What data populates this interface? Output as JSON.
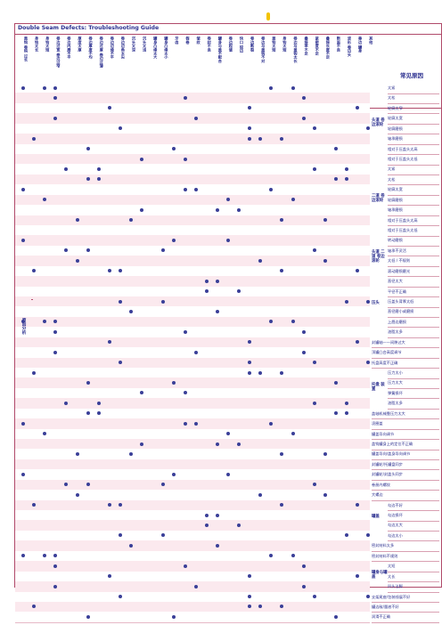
{
  "title": "Double Seam Defects: Troubleshooting Guide",
  "side_label": "原因分析",
  "cause_header": "常见原因",
  "columns": [
    "盖钩 卷钩 过长",
    "身钩太长",
    "身钩太短",
    "卷边过宽 卷边过窄",
    "卷边内唇不平",
    "厚度太厚",
    "卷边厚度不均",
    "卷边过厚 卷边过薄",
    "卷边边缘不平",
    "卷边边角太尖",
    "沉头太深",
    "沉头太浅",
    "罐身凸缘太大",
    "罐身凸缘太小",
    "牙齿",
    "假卷",
    "皱纹",
    "卷封不良",
    "罐身与盖不配合",
    "卷边起皱",
    "快口 锐边",
    "卷边断裂",
    "卷边与盖钩不对",
    "盖钩太短",
    "身钩太短",
    "卷边与盖钩太长",
    "叠接率不足",
    "紧密度不足",
    "叠接长度不足",
    "断面不良",
    "波形 卷边头",
    "垂边 罐身",
    "其他"
  ],
  "groups": [
    {
      "label": "头道 卷边滚轮"
    },
    {
      "label": "二道 卷边滚轮"
    },
    {
      "label": "头道 二道 卷边 滚轮"
    },
    {
      "label": "压头"
    },
    {
      "label": "托盘 装置"
    },
    {
      "label": "罐盖"
    },
    {
      "label": "罐身与罐盖"
    }
  ],
  "rows": [
    {
      "label": "太紧",
      "sub": true
    },
    {
      "label": "太松",
      "sub": true
    },
    {
      "label": "轮廓太窄",
      "sub": true
    },
    {
      "label": "轮廓太宽",
      "sub": true
    },
    {
      "label": "轮廓磨损",
      "sub": true
    },
    {
      "label": "轴承磨损",
      "sub": true
    },
    {
      "label": "相对于压盖头太高",
      "sub": true
    },
    {
      "label": "相对于压盖头太低",
      "sub": true
    },
    {
      "label": "太紧",
      "sub": true
    },
    {
      "label": "太松",
      "sub": true
    },
    {
      "label": "轮廓太宽",
      "sub": true
    },
    {
      "label": "轮廓磨损",
      "sub": true
    },
    {
      "label": "轴承磨损",
      "sub": true
    },
    {
      "label": "相对于压盖头太高",
      "sub": true
    },
    {
      "label": "相对于压盖头太低",
      "sub": true
    },
    {
      "label": "转动磨损",
      "sub": true
    },
    {
      "label": "轴承不灵活",
      "sub": true
    },
    {
      "label": "太低 / 不规则",
      "sub": true
    },
    {
      "label": "滚动磨损磨光",
      "sub": true
    },
    {
      "label": "直径太大",
      "sub": true
    },
    {
      "label": "平径不正确",
      "sub": true
    },
    {
      "label": "压盖头背厚太低",
      "sub": true
    },
    {
      "label": "直径磨小或磨损",
      "sub": true
    },
    {
      "label": "上唇边磨损",
      "sub": true
    },
    {
      "label": "油脂太多",
      "sub": true
    },
    {
      "label": "封罐轴——间隙过大",
      "sub": false
    },
    {
      "label": "顶罐凸台高度调节",
      "sub": false
    },
    {
      "label": "托盘高度不正确",
      "sub": false
    },
    {
      "label": "压力太小",
      "sub": true
    },
    {
      "label": "压力太大",
      "sub": true
    },
    {
      "label": "弹簧损坏",
      "sub": true
    },
    {
      "label": "油脂太多",
      "sub": true
    },
    {
      "label": "盖轴机械靠压力太大",
      "sub": false
    },
    {
      "label": "凌圈盖",
      "sub": false
    },
    {
      "label": "罐盖导向调节",
      "sub": false
    },
    {
      "label": "盖钩罐身上的定位不正确",
      "sub": false
    },
    {
      "label": "罐盖导向/盖身导向调节",
      "sub": false
    },
    {
      "label": "封罐轮/托罐盘同步",
      "sub": false
    },
    {
      "label": "封罐轮/封盖头同步",
      "sub": false
    },
    {
      "label": "卷册内螺纹",
      "sub": false
    },
    {
      "label": "大螺边",
      "sub": false
    },
    {
      "label": "勾边不好",
      "sub": true
    },
    {
      "label": "勾边损坏",
      "sub": true
    },
    {
      "label": "勾边太大",
      "sub": true
    },
    {
      "label": "勾边太小",
      "sub": true
    },
    {
      "label": "密封材料太多",
      "sub": false
    },
    {
      "label": "密封材料不规则",
      "sub": false
    },
    {
      "label": "太短",
      "sub": true
    },
    {
      "label": "太长",
      "sub": true
    },
    {
      "label": "凹头法脚",
      "sub": true
    },
    {
      "label": "支架尾座/包装线展不好",
      "sub": false
    },
    {
      "label": "罐边敌/量液不好",
      "sub": false
    },
    {
      "label": "润滑不正确",
      "sub": false
    }
  ]
}
